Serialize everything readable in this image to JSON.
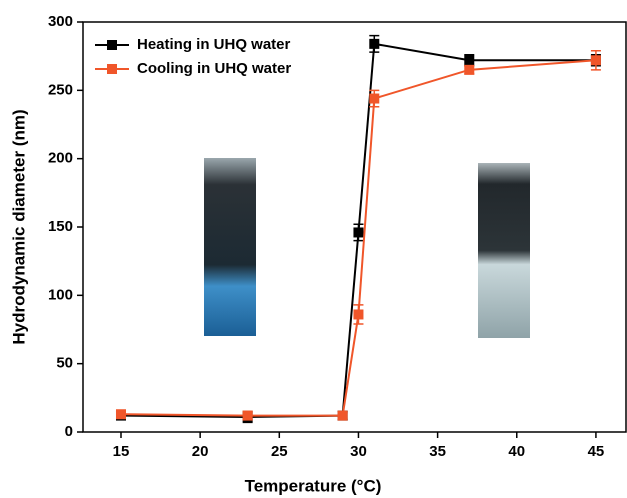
{
  "chart_data": {
    "type": "line",
    "x_label": "Temperature (°C)",
    "y_label": "Hydrodynamic diameter (nm)",
    "x": [
      15,
      23,
      29,
      30,
      31,
      37,
      45
    ],
    "series": [
      {
        "name": "Heating in UHQ water",
        "color": "#000000",
        "values": [
          12,
          11,
          12,
          146,
          284,
          272,
          272
        ],
        "errors": [
          3,
          4,
          3,
          6,
          6,
          4,
          4
        ]
      },
      {
        "name": "Cooling in UHQ water",
        "color": "#f0562a",
        "values": [
          13,
          12,
          12,
          86,
          244,
          265,
          272
        ],
        "errors": [
          2,
          3,
          2,
          7,
          6,
          3,
          7
        ]
      }
    ],
    "xlim": [
      12.6,
      46.9
    ],
    "xticks": [
      15,
      20,
      25,
      30,
      35,
      40,
      45
    ],
    "ylim": [
      0,
      300
    ],
    "yticks": [
      0,
      50,
      100,
      150,
      200,
      250,
      300
    ],
    "legend": "upper left",
    "grid": false
  }
}
